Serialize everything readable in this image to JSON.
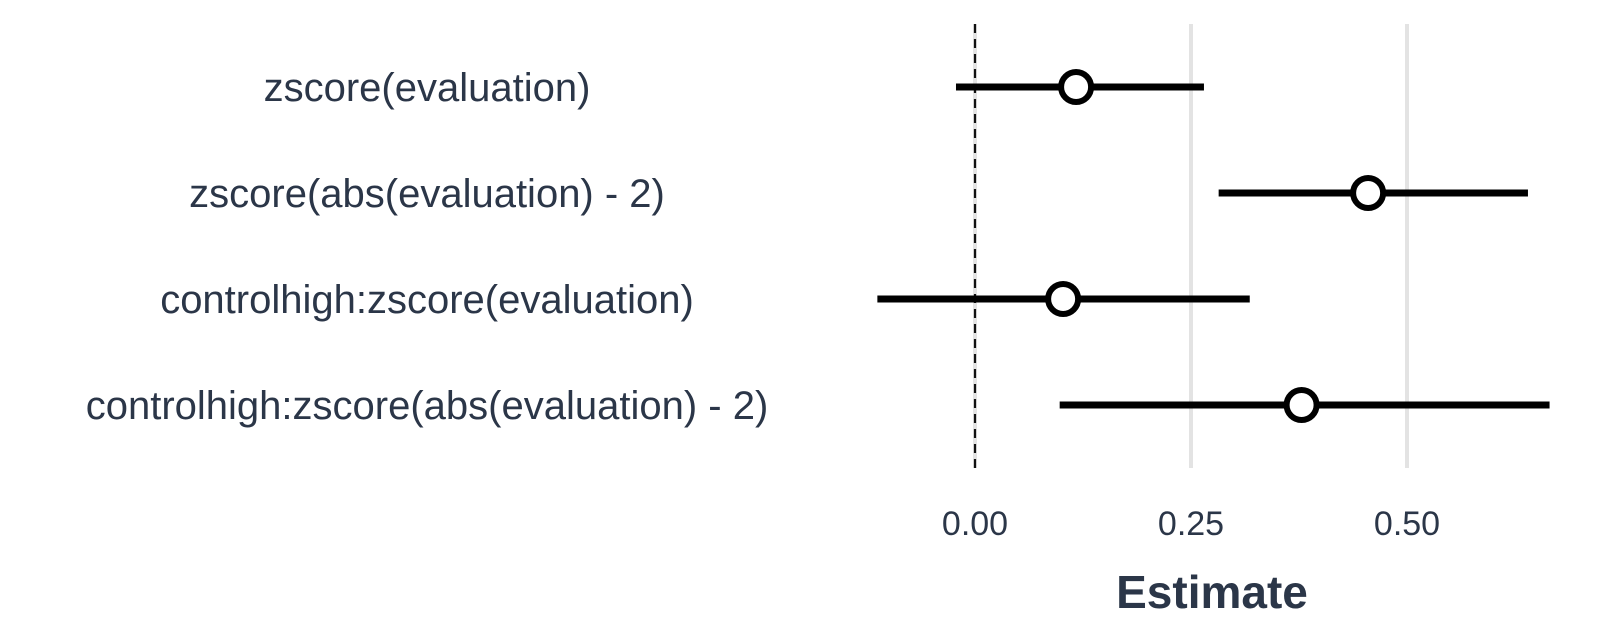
{
  "chart_data": {
    "type": "coefficient-plot",
    "xlabel": "Estimate",
    "xlim": [
      -0.12,
      0.7
    ],
    "xticks": [
      0.0,
      0.25,
      0.5
    ],
    "xtick_labels": [
      "0.00",
      "0.25",
      "0.50"
    ],
    "reference_line": 0,
    "grid": "vertical-major",
    "terms": [
      {
        "label": "zscore(evaluation)",
        "estimate": 0.117,
        "lower": -0.022,
        "upper": 0.265
      },
      {
        "label": "zscore(abs(evaluation) - 2)",
        "estimate": 0.455,
        "upper": 0.64,
        "lower": 0.282
      },
      {
        "label": "controlhigh:zscore(evaluation)",
        "estimate": 0.102,
        "lower": -0.113,
        "upper": 0.318
      },
      {
        "label": "controlhigh:zscore(abs(evaluation) - 2)",
        "estimate": 0.378,
        "lower": 0.098,
        "upper": 0.665
      }
    ],
    "colors": {
      "interval": "#000000",
      "point_fill": "#ffffff",
      "point_stroke": "#000000",
      "grid": "#e3e3e3",
      "text": "#2b3648"
    }
  }
}
